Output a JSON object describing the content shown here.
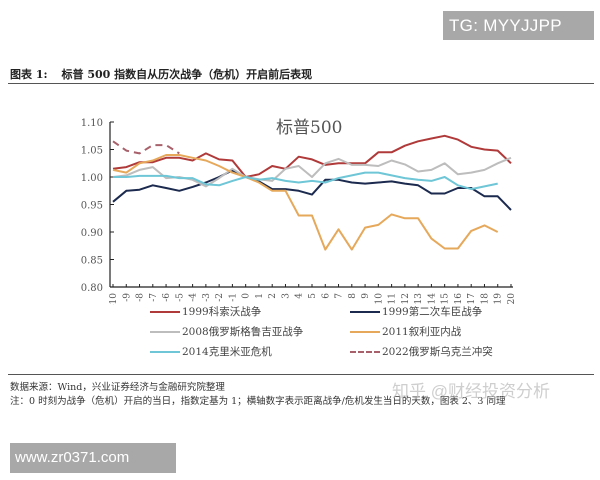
{
  "badges": {
    "tg": "TG: MYYJJPP",
    "site": "www.zr0371.com",
    "zhihu_watermark": "知乎 @财经投资分析"
  },
  "figure": {
    "number": "图表 1:",
    "title": "标普 500 指数自从历次战争（危机）开启前后表现"
  },
  "notes": {
    "source": "数据来源：Wind，兴业证券经济与金融研究院整理",
    "remark": "注：0 时刻为战争（危机）开启的当日，指数定基为 1；横轴数字表示距离战争/危机发生当日的天数，图表 2、3 同理"
  },
  "chart_data": {
    "type": "line",
    "title": "标普500",
    "xlabel": "",
    "ylabel": "",
    "ylim": [
      0.8,
      1.1
    ],
    "yticks": [
      "0.80",
      "0.85",
      "0.90",
      "0.95",
      "1.00",
      "1.05",
      "1.10"
    ],
    "x": [
      -10,
      -9,
      -8,
      -7,
      -6,
      -5,
      -4,
      -3,
      -2,
      -1,
      0,
      1,
      2,
      3,
      4,
      5,
      6,
      7,
      8,
      9,
      10,
      11,
      12,
      13,
      14,
      15,
      16,
      17,
      18,
      19,
      20
    ],
    "grid": false,
    "legend_position": "bottom",
    "series": [
      {
        "name": "1999科索沃战争",
        "color": "#b03a3a",
        "dashed": false,
        "values": [
          1.015,
          1.018,
          1.027,
          1.027,
          1.035,
          1.035,
          1.03,
          1.043,
          1.032,
          1.03,
          1.0,
          1.005,
          1.02,
          1.015,
          1.037,
          1.032,
          1.022,
          1.025,
          1.025,
          1.025,
          1.045,
          1.045,
          1.057,
          1.065,
          1.07,
          1.075,
          1.068,
          1.055,
          1.05,
          1.048,
          1.025
        ]
      },
      {
        "name": "1999第二次车臣战争",
        "color": "#1b2a4e",
        "dashed": false,
        "values": [
          0.955,
          0.975,
          0.977,
          0.985,
          0.98,
          0.975,
          0.982,
          0.99,
          1.0,
          1.012,
          1.0,
          0.992,
          0.978,
          0.978,
          0.975,
          0.968,
          0.995,
          0.995,
          0.99,
          0.988,
          0.99,
          0.992,
          0.988,
          0.985,
          0.97,
          0.97,
          0.98,
          0.98,
          0.965,
          0.965,
          0.94
        ]
      },
      {
        "name": "2008俄罗斯格鲁吉亚战争",
        "color": "#bdbdbd",
        "dashed": false,
        "values": [
          1.0,
          1.003,
          1.013,
          1.018,
          0.998,
          1.0,
          0.995,
          0.983,
          0.998,
          1.015,
          1.0,
          0.996,
          0.993,
          1.015,
          1.02,
          1.0,
          1.025,
          1.033,
          1.022,
          1.022,
          1.02,
          1.03,
          1.023,
          1.01,
          1.013,
          1.025,
          1.005,
          1.008,
          1.013,
          1.025,
          1.035
        ]
      },
      {
        "name": "2011叙利亚内战",
        "color": "#e6a85a",
        "dashed": false,
        "values": [
          1.013,
          1.008,
          1.025,
          1.03,
          1.04,
          1.04,
          1.035,
          1.03,
          1.02,
          1.008,
          1.0,
          0.99,
          0.975,
          0.975,
          0.93,
          0.93,
          0.868,
          0.905,
          0.868,
          0.908,
          0.913,
          0.932,
          0.925,
          0.925,
          0.888,
          0.87,
          0.87,
          0.902,
          0.912,
          0.9,
          null
        ]
      },
      {
        "name": "2014克里米亚危机",
        "color": "#6ec6d6",
        "dashed": false,
        "values": [
          1.0,
          1.0,
          1.002,
          1.002,
          1.002,
          0.998,
          0.998,
          0.987,
          0.985,
          0.993,
          1.0,
          0.995,
          0.998,
          0.993,
          0.99,
          0.993,
          0.99,
          0.998,
          1.003,
          1.008,
          1.008,
          1.003,
          0.998,
          0.995,
          0.993,
          1.0,
          0.985,
          0.978,
          0.983,
          0.988,
          null
        ]
      },
      {
        "name": "2022俄罗斯乌克兰冲突",
        "color": "#a8606a",
        "dashed": true,
        "values": [
          1.065,
          1.048,
          1.043,
          1.058,
          1.058,
          1.043,
          null,
          null,
          null,
          null,
          null,
          null,
          null,
          null,
          null,
          null,
          null,
          null,
          null,
          null,
          null,
          null,
          null,
          null,
          null,
          null,
          null,
          null,
          null,
          null,
          null
        ]
      }
    ]
  }
}
